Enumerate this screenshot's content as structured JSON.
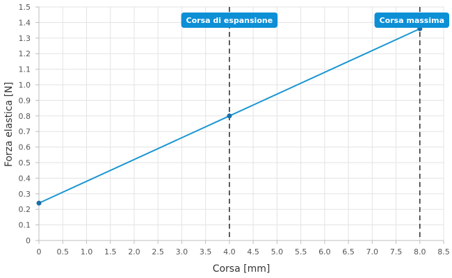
{
  "chart_data": {
    "type": "line",
    "xlabel": "Corsa [mm]",
    "ylabel": "Forza elastica [N]",
    "xlim": [
      0,
      8.5
    ],
    "ylim": [
      0,
      1.5
    ],
    "x_ticks": [
      "0",
      "0.5",
      "1.0",
      "1.5",
      "2.0",
      "2.5",
      "3.0",
      "3.5",
      "4.0",
      "4.5",
      "5.0",
      "5.5",
      "6.0",
      "6.5",
      "7.0",
      "7.5",
      "8.0",
      "8.5"
    ],
    "x_tick_values": [
      0,
      0.5,
      1.0,
      1.5,
      2.0,
      2.5,
      3.0,
      3.5,
      4.0,
      4.5,
      5.0,
      5.5,
      6.0,
      6.5,
      7.0,
      7.5,
      8.0,
      8.5
    ],
    "y_ticks": [
      "0",
      "0.1",
      "0.2",
      "0.3",
      "0.4",
      "0.5",
      "0.6",
      "0.7",
      "0.8",
      "0.9",
      "1.0",
      "1.1",
      "1.2",
      "1.3",
      "1.4",
      "1.5"
    ],
    "y_tick_values": [
      0,
      0.1,
      0.2,
      0.3,
      0.4,
      0.5,
      0.6,
      0.7,
      0.8,
      0.9,
      1.0,
      1.1,
      1.2,
      1.3,
      1.4,
      1.5
    ],
    "grid": true,
    "series": [
      {
        "x": [
          0,
          4.0,
          8.0
        ],
        "y": [
          0.24,
          0.8,
          1.36
        ],
        "color": "#1a96d2",
        "marker_color": "#1a6ea8"
      }
    ],
    "vertical_markers": [
      {
        "x": 4.0,
        "label": "Corsa di espansione"
      },
      {
        "x": 8.0,
        "label": "Corsa massima"
      }
    ],
    "marker_label_color": "#0d8fd6",
    "marker_line_color": "#333333"
  }
}
